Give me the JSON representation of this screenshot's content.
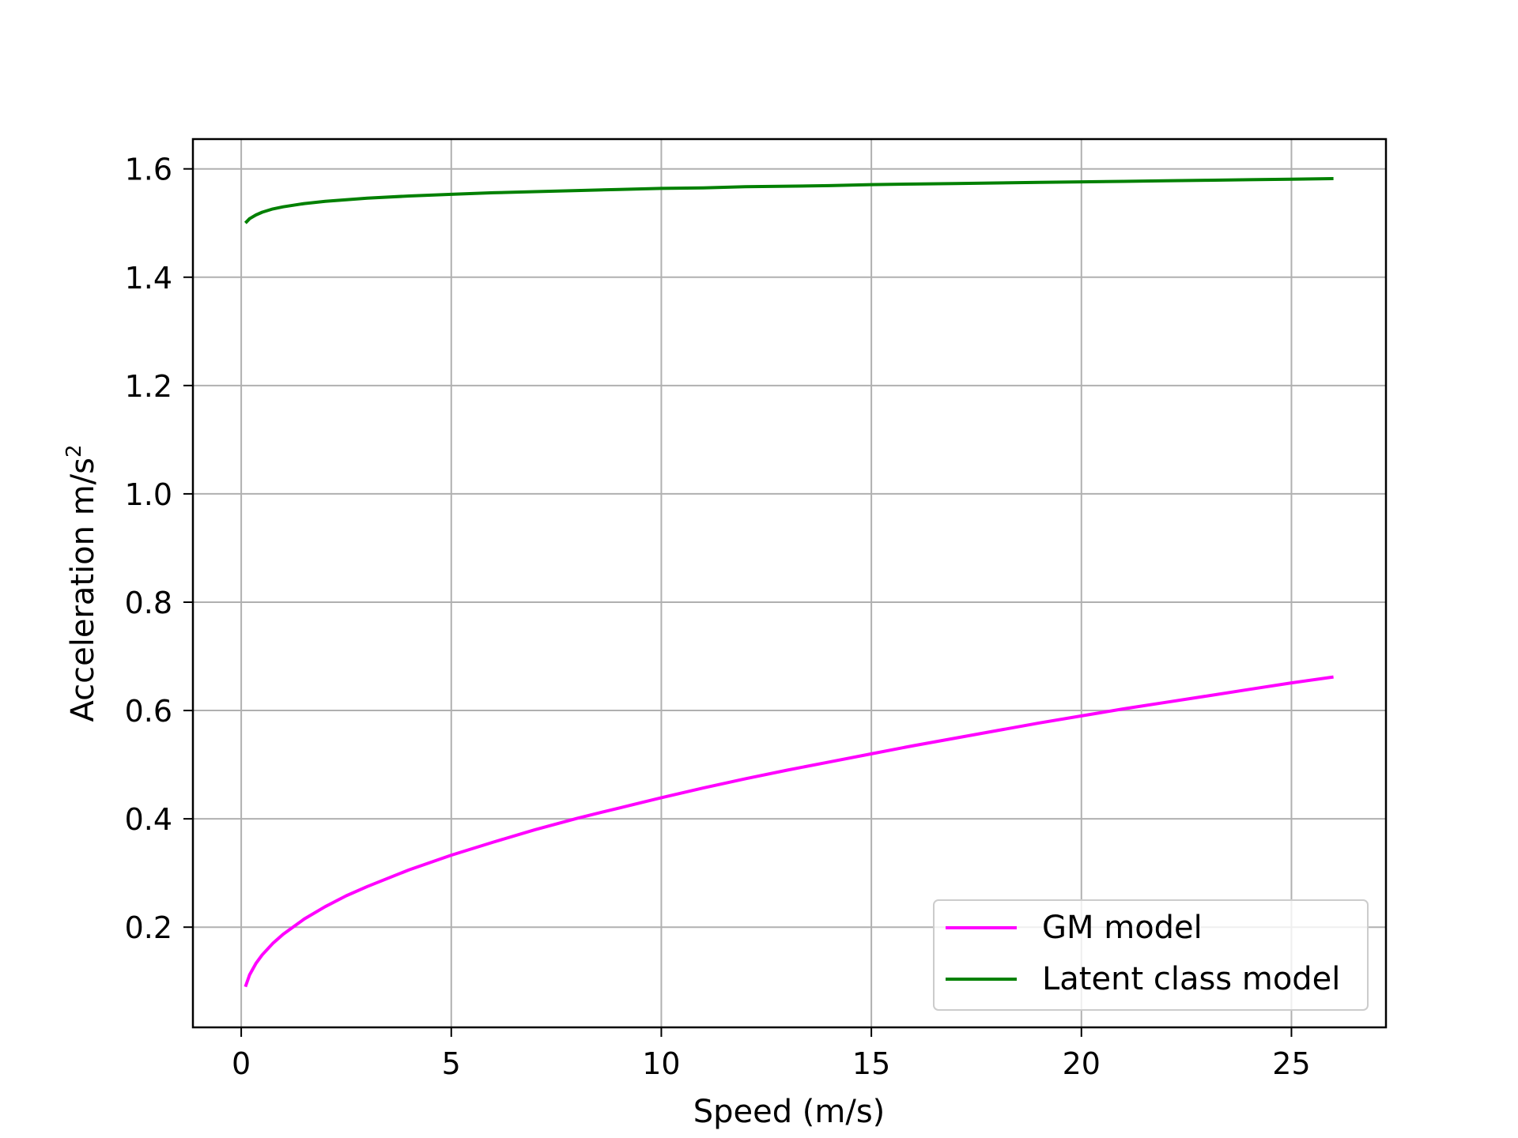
{
  "chart_data": {
    "type": "line",
    "title": "",
    "xlabel": "Speed (m/s)",
    "ylabel_main": "Acceleration m/s",
    "ylabel_sup": "2",
    "xlim": [
      -1.15,
      27.25
    ],
    "ylim": [
      0.015,
      1.655
    ],
    "xticks": [
      0,
      5,
      10,
      15,
      20,
      25
    ],
    "xtick_labels": [
      "0",
      "5",
      "10",
      "15",
      "20",
      "25"
    ],
    "yticks": [
      0.2,
      0.4,
      0.6,
      0.8,
      1.0,
      1.2,
      1.4,
      1.6
    ],
    "ytick_labels": [
      "0.2",
      "0.4",
      "0.6",
      "0.8",
      "1.0",
      "1.2",
      "1.4",
      "1.6"
    ],
    "grid": true,
    "legend_position": "lower-right",
    "series": [
      {
        "name": "GM model",
        "color": "#ff00ff",
        "x": [
          0.1,
          0.2,
          0.35,
          0.5,
          0.75,
          1,
          1.5,
          2,
          2.5,
          3,
          4,
          5,
          6,
          7,
          8,
          9,
          10,
          11,
          12,
          13,
          14,
          15,
          16,
          17,
          18,
          19,
          20,
          21,
          22,
          23,
          24,
          25,
          26
        ],
        "y": [
          0.09,
          0.112,
          0.133,
          0.149,
          0.17,
          0.187,
          0.215,
          0.238,
          0.258,
          0.275,
          0.306,
          0.333,
          0.357,
          0.38,
          0.401,
          0.42,
          0.439,
          0.457,
          0.474,
          0.49,
          0.505,
          0.52,
          0.535,
          0.549,
          0.563,
          0.577,
          0.59,
          0.603,
          0.615,
          0.627,
          0.639,
          0.651,
          0.662
        ]
      },
      {
        "name": "Latent class model",
        "color": "#008000",
        "x": [
          0.1,
          0.2,
          0.35,
          0.5,
          0.75,
          1,
          1.5,
          2,
          2.5,
          3,
          4,
          5,
          6,
          7,
          8,
          9,
          10,
          11,
          12,
          13,
          14,
          15,
          16,
          17,
          18,
          19,
          20,
          21,
          22,
          23,
          24,
          25,
          26
        ],
        "y": [
          1.5,
          1.508,
          1.515,
          1.52,
          1.526,
          1.53,
          1.536,
          1.54,
          1.543,
          1.546,
          1.55,
          1.553,
          1.556,
          1.558,
          1.56,
          1.562,
          1.564,
          1.565,
          1.567,
          1.568,
          1.569,
          1.571,
          1.572,
          1.573,
          1.574,
          1.575,
          1.576,
          1.577,
          1.578,
          1.579,
          1.58,
          1.581,
          1.582
        ]
      }
    ]
  }
}
